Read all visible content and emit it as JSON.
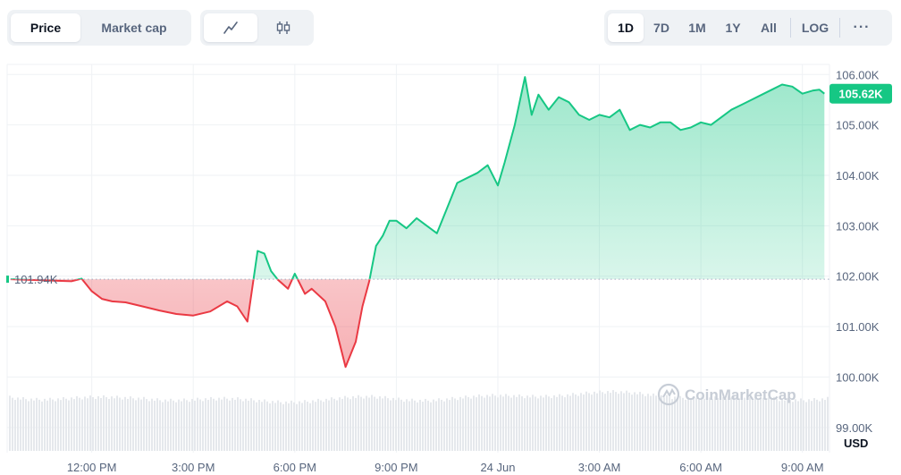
{
  "toolbar": {
    "view_tabs": [
      {
        "label": "Price",
        "active": true
      },
      {
        "label": "Market cap",
        "active": false
      }
    ],
    "chart_type_tabs": [
      {
        "icon": "line-chart-icon",
        "active": true
      },
      {
        "icon": "candlestick-icon",
        "active": false
      }
    ],
    "range_tabs": [
      {
        "label": "1D",
        "active": true
      },
      {
        "label": "7D",
        "active": false
      },
      {
        "label": "1M",
        "active": false
      },
      {
        "label": "1Y",
        "active": false
      },
      {
        "label": "All",
        "active": false
      }
    ],
    "log_label": "LOG",
    "more_label": "···"
  },
  "watermark": "CoinMarketCap",
  "colors": {
    "up": "#16c784",
    "down": "#ea3943",
    "current_price_badge": "#16c784"
  },
  "chart_data": {
    "type": "area",
    "currency_label": "USD",
    "baseline_label": "101.94K",
    "baseline_value": 101940,
    "current_label": "105.62K",
    "current_value": 105620,
    "ylim": [
      98500,
      106200
    ],
    "y_ticks": [
      {
        "value": 106000,
        "label": "106.00K"
      },
      {
        "value": 105000,
        "label": "105.00K"
      },
      {
        "value": 104000,
        "label": "104.00K"
      },
      {
        "value": 103000,
        "label": "103.00K"
      },
      {
        "value": 102000,
        "label": "102.00K"
      },
      {
        "value": 101000,
        "label": "101.00K"
      },
      {
        "value": 100000,
        "label": "100.00K"
      },
      {
        "value": 99000,
        "label": "99.00K"
      }
    ],
    "xlim": [
      9.5,
      33.8
    ],
    "x_ticks": [
      {
        "value": 12,
        "label": "12:00 PM"
      },
      {
        "value": 15,
        "label": "3:00 PM"
      },
      {
        "value": 18,
        "label": "6:00 PM"
      },
      {
        "value": 21,
        "label": "9:00 PM"
      },
      {
        "value": 24,
        "label": "24 Jun"
      },
      {
        "value": 27,
        "label": "3:00 AM"
      },
      {
        "value": 30,
        "label": "6:00 AM"
      },
      {
        "value": 33,
        "label": "9:00 AM"
      }
    ],
    "x": [
      9.6,
      11.4,
      11.7,
      12.0,
      12.3,
      12.6,
      13.0,
      13.5,
      14.0,
      14.5,
      15.0,
      15.5,
      16.0,
      16.3,
      16.6,
      16.9,
      17.1,
      17.3,
      17.5,
      17.8,
      18.0,
      18.3,
      18.5,
      18.9,
      19.2,
      19.5,
      19.8,
      20.0,
      20.2,
      20.4,
      20.6,
      20.8,
      21.0,
      21.3,
      21.6,
      21.9,
      22.2,
      22.5,
      22.8,
      23.1,
      23.4,
      23.7,
      24.0,
      24.2,
      24.5,
      24.8,
      25.0,
      25.2,
      25.5,
      25.8,
      26.1,
      26.4,
      26.7,
      27.0,
      27.3,
      27.6,
      27.9,
      28.2,
      28.5,
      28.8,
      29.1,
      29.4,
      29.7,
      30.0,
      30.3,
      30.6,
      30.9,
      31.2,
      31.5,
      31.8,
      32.1,
      32.4,
      32.7,
      33.0,
      33.3,
      33.5,
      33.65
    ],
    "y": [
      101940,
      101900,
      101950,
      101700,
      101550,
      101500,
      101480,
      101400,
      101320,
      101250,
      101220,
      101300,
      101500,
      101400,
      101100,
      102500,
      102450,
      102100,
      101930,
      101750,
      102050,
      101650,
      101750,
      101500,
      101000,
      100200,
      100700,
      101400,
      101900,
      102600,
      102800,
      103100,
      103100,
      102950,
      103150,
      103000,
      102850,
      103350,
      103850,
      103950,
      104050,
      104200,
      103800,
      104250,
      105000,
      105950,
      105200,
      105600,
      105300,
      105550,
      105450,
      105200,
      105100,
      105200,
      105150,
      105300,
      104900,
      105000,
      104950,
      105050,
      105050,
      104900,
      104950,
      105050,
      105000,
      105150,
      105300,
      105400,
      105500,
      105600,
      105700,
      105800,
      105760,
      105620,
      105680,
      105700,
      105620
    ]
  }
}
